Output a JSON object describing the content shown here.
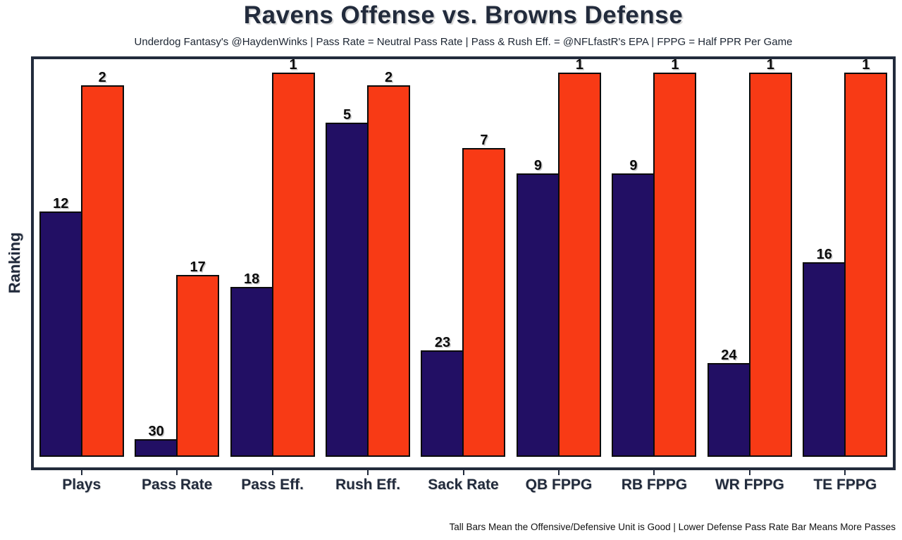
{
  "chart": {
    "title": "Ravens Offense vs. Browns Defense",
    "subtitle": "Underdog Fantasy's @HaydenWinks | Pass Rate = Neutral Pass Rate | Pass & Rush Eff. = @NFLfastR's EPA | FPPG = Half PPR Per Game",
    "ylabel": "Ranking",
    "footnote": "Tall Bars Mean the Offensive/Defensive Unit is Good | Lower Defense Pass Rate Bar Means More Passes"
  },
  "chart_data": {
    "type": "bar",
    "categories": [
      "Plays",
      "Pass Rate",
      "Pass Eff.",
      "Rush Eff.",
      "Sack Rate",
      "QB FPPG",
      "RB FPPG",
      "WR FPPG",
      "TE FPPG"
    ],
    "series": [
      {
        "name": "Ravens Offense",
        "color": "#220F64",
        "values": [
          12,
          30,
          18,
          5,
          23,
          9,
          9,
          24,
          16
        ]
      },
      {
        "name": "Browns Defense",
        "color": "#F83A15",
        "values": [
          2,
          17,
          1,
          2,
          7,
          1,
          1,
          1,
          1
        ]
      }
    ],
    "value_meaning": "NFL ranking out of 32 (1 = best, taller bar = better rank)",
    "ylim": [
      0,
      32
    ],
    "bar_labels": true,
    "legend_position": "none",
    "grid": false
  },
  "colors": {
    "offense_bar": "#220F64",
    "defense_bar": "#F83A15",
    "bar_outline": "#0b0b0b",
    "frame_and_text": "#222B3C",
    "background": "#ffffff"
  }
}
